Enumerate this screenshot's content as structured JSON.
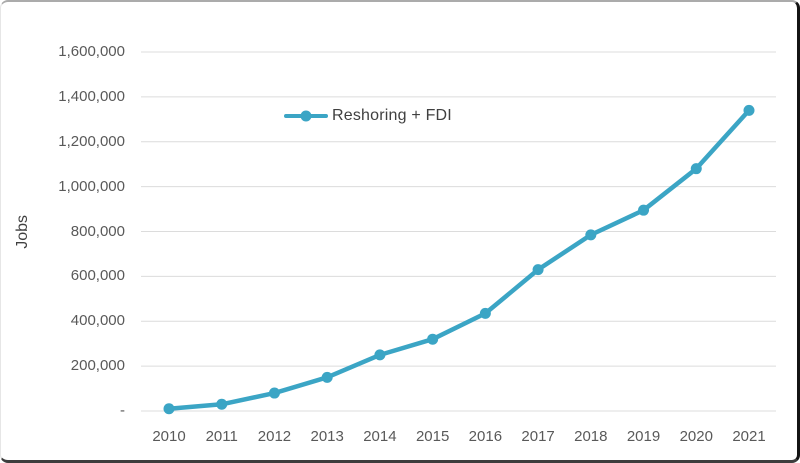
{
  "chart_data": {
    "type": "line",
    "title": "",
    "xlabel": "",
    "ylabel": "Jobs",
    "categories": [
      "2010",
      "2011",
      "2012",
      "2013",
      "2014",
      "2015",
      "2016",
      "2017",
      "2018",
      "2019",
      "2020",
      "2021"
    ],
    "series": [
      {
        "name": "Reshoring + FDI",
        "values": [
          10000,
          30000,
          80000,
          150000,
          250000,
          320000,
          435000,
          630000,
          785000,
          895000,
          1080000,
          1340000
        ]
      }
    ],
    "ylim": [
      0,
      1600000
    ],
    "ytick_step": 200000,
    "ytick_labels": [
      "-",
      "200,000",
      "400,000",
      "600,000",
      "800,000",
      "1,000,000",
      "1,200,000",
      "1,400,000",
      "1,600,000"
    ],
    "legend": {
      "label": "Reshoring + FDI",
      "position": "inside-top-center"
    },
    "grid": "horizontal",
    "colors": {
      "line": "#3BA5C5",
      "grid": "#dcdcdc",
      "tick_text": "#595959",
      "label_text": "#404040"
    }
  }
}
